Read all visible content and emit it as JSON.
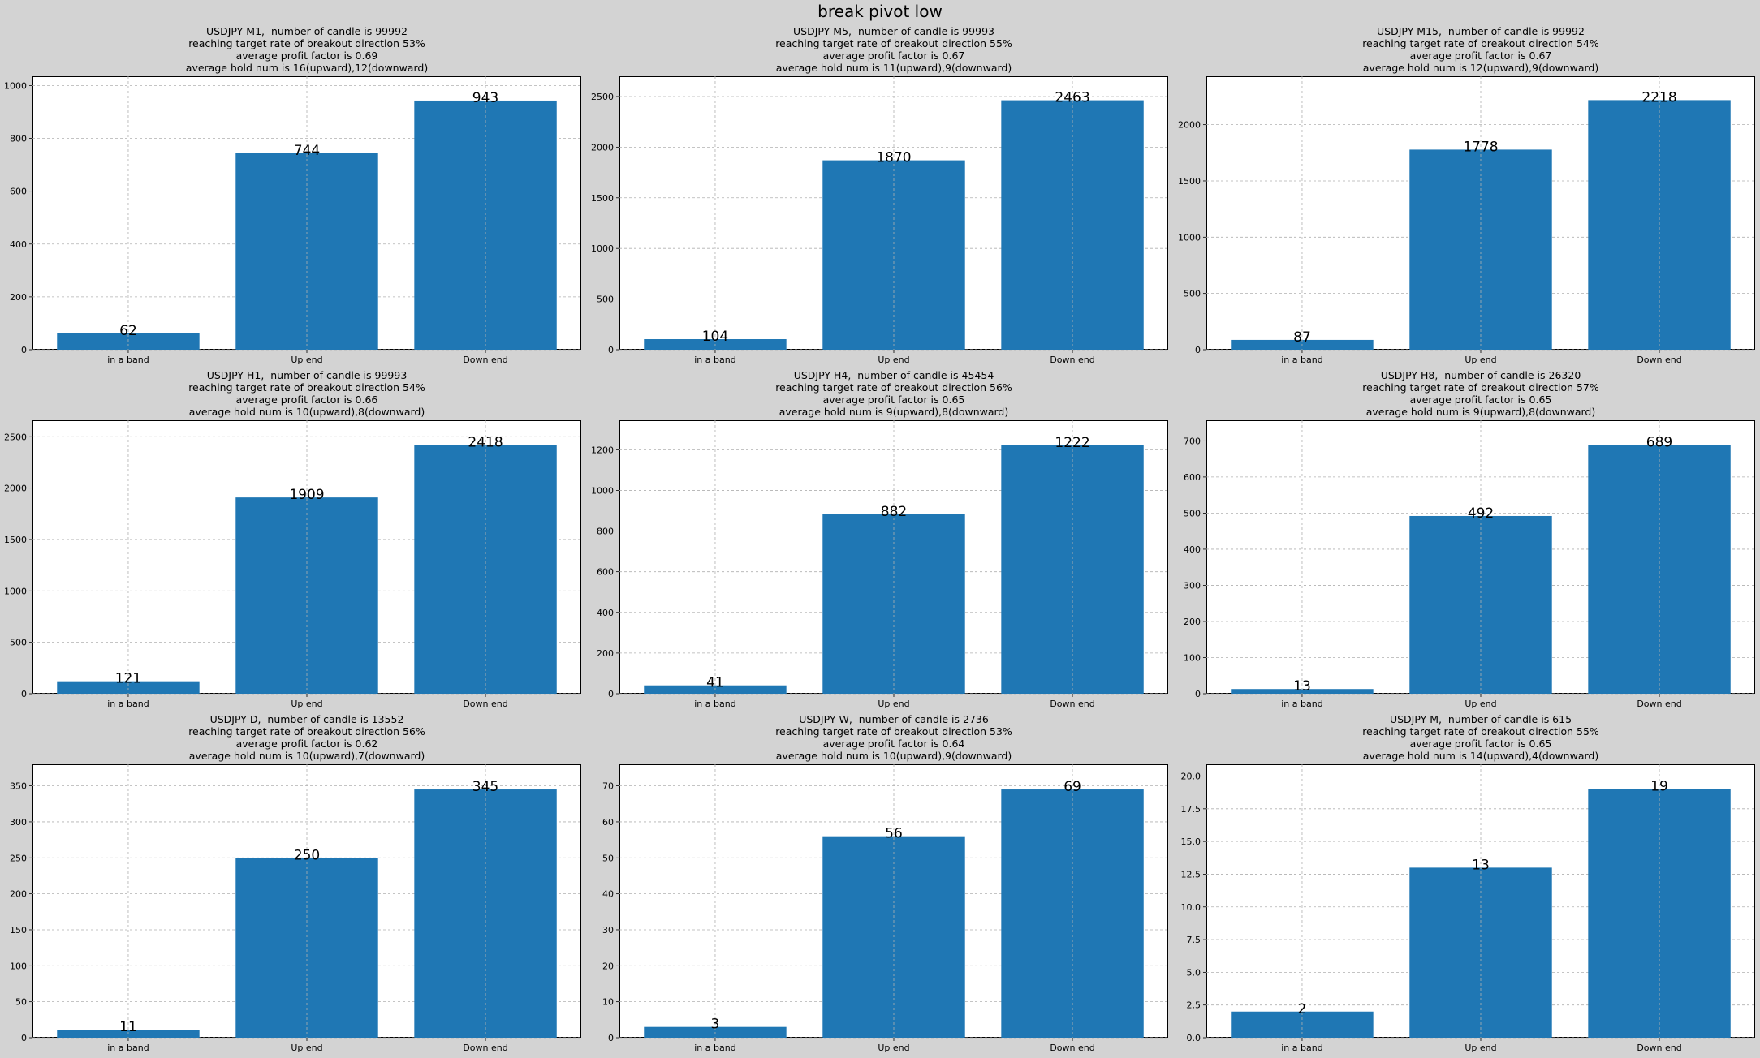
{
  "figure": {
    "suptitle": "break pivot low",
    "bar_color": "#1f77b4",
    "background": "#d3d3d3"
  },
  "chart_data": [
    {
      "type": "bar",
      "title_lines": [
        "USDJPY M1,  number of candle is 99992",
        "reaching target rate of breakout direction 53%",
        "average profit factor is 0.69",
        "average hold num is 16(upward),12(downward)"
      ],
      "categories": [
        "in a band",
        "Up end",
        "Down end"
      ],
      "values": [
        62,
        744,
        943
      ],
      "ylim": [
        0,
        1035
      ],
      "yticks": [
        0,
        200,
        400,
        600,
        800,
        1000
      ],
      "grid": true
    },
    {
      "type": "bar",
      "title_lines": [
        "USDJPY M5,  number of candle is 99993",
        "reaching target rate of breakout direction 55%",
        "average profit factor is 0.67",
        "average hold num is 11(upward),9(downward)"
      ],
      "categories": [
        "in a band",
        "Up end",
        "Down end"
      ],
      "values": [
        104,
        1870,
        2463
      ],
      "ylim": [
        0,
        2700
      ],
      "yticks": [
        0,
        500,
        1000,
        1500,
        2000,
        2500
      ],
      "grid": true
    },
    {
      "type": "bar",
      "title_lines": [
        "USDJPY M15,  number of candle is 99992",
        "reaching target rate of breakout direction 54%",
        "average profit factor is 0.67",
        "average hold num is 12(upward),9(downward)"
      ],
      "categories": [
        "in a band",
        "Up end",
        "Down end"
      ],
      "values": [
        87,
        1778,
        2218
      ],
      "ylim": [
        0,
        2430
      ],
      "yticks": [
        0,
        500,
        1000,
        1500,
        2000
      ],
      "grid": true
    },
    {
      "type": "bar",
      "title_lines": [
        "USDJPY H1,  number of candle is 99993",
        "reaching target rate of breakout direction 54%",
        "average profit factor is 0.66",
        "average hold num is 10(upward),8(downward)"
      ],
      "categories": [
        "in a band",
        "Up end",
        "Down end"
      ],
      "values": [
        121,
        1909,
        2418
      ],
      "ylim": [
        0,
        2660
      ],
      "yticks": [
        0,
        500,
        1000,
        1500,
        2000,
        2500
      ],
      "grid": true
    },
    {
      "type": "bar",
      "title_lines": [
        "USDJPY H4,  number of candle is 45454",
        "reaching target rate of breakout direction 56%",
        "average profit factor is 0.65",
        "average hold num is 9(upward),8(downward)"
      ],
      "categories": [
        "in a band",
        "Up end",
        "Down end"
      ],
      "values": [
        41,
        882,
        1222
      ],
      "ylim": [
        0,
        1345
      ],
      "yticks": [
        0,
        200,
        400,
        600,
        800,
        1000,
        1200
      ],
      "grid": true
    },
    {
      "type": "bar",
      "title_lines": [
        "USDJPY H8,  number of candle is 26320",
        "reaching target rate of breakout direction 57%",
        "average profit factor is 0.65",
        "average hold num is 9(upward),8(downward)"
      ],
      "categories": [
        "in a band",
        "Up end",
        "Down end"
      ],
      "values": [
        13,
        492,
        689
      ],
      "ylim": [
        0,
        757
      ],
      "yticks": [
        0,
        100,
        200,
        300,
        400,
        500,
        600,
        700
      ],
      "grid": true
    },
    {
      "type": "bar",
      "title_lines": [
        "USDJPY D,  number of candle is 13552",
        "reaching target rate of breakout direction 56%",
        "average profit factor is 0.62",
        "average hold num is 10(upward),7(downward)"
      ],
      "categories": [
        "in a band",
        "Up end",
        "Down end"
      ],
      "values": [
        11,
        250,
        345
      ],
      "ylim": [
        0,
        380
      ],
      "yticks": [
        0,
        50,
        100,
        150,
        200,
        250,
        300,
        350
      ],
      "grid": true
    },
    {
      "type": "bar",
      "title_lines": [
        "USDJPY W,  number of candle is 2736",
        "reaching target rate of breakout direction 53%",
        "average profit factor is 0.64",
        "average hold num is 10(upward),9(downward)"
      ],
      "categories": [
        "in a band",
        "Up end",
        "Down end"
      ],
      "values": [
        3,
        56,
        69
      ],
      "ylim": [
        0,
        76
      ],
      "yticks": [
        0,
        10,
        20,
        30,
        40,
        50,
        60,
        70
      ],
      "grid": true
    },
    {
      "type": "bar",
      "title_lines": [
        "USDJPY M,  number of candle is 615",
        "reaching target rate of breakout direction 55%",
        "average profit factor is 0.65",
        "average hold num is 14(upward),4(downward)"
      ],
      "categories": [
        "in a band",
        "Up end",
        "Down end"
      ],
      "values": [
        2,
        13,
        19
      ],
      "ylim": [
        0,
        20.9
      ],
      "yticks": [
        0.0,
        2.5,
        5.0,
        7.5,
        10.0,
        12.5,
        15.0,
        17.5,
        20.0
      ],
      "ytick_decimals": 1,
      "grid": true
    }
  ]
}
